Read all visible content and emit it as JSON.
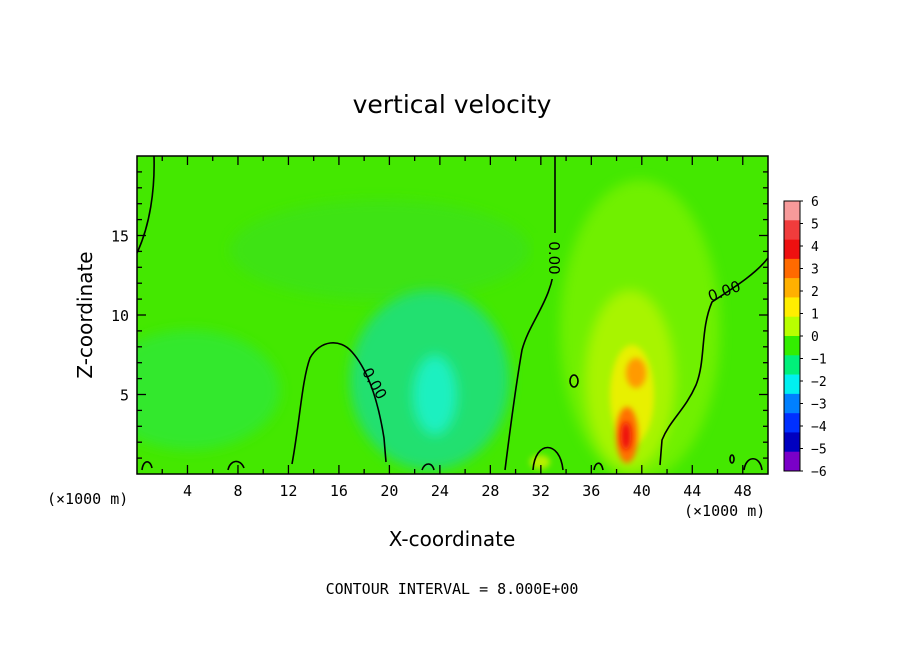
{
  "chart_data": {
    "type": "heatmap",
    "title": "vertical velocity",
    "xlabel": "X-coordinate",
    "ylabel": "Z-coordinate",
    "x_unit": "(×1000 m)",
    "y_unit": "(×1000 m)",
    "footer": "CONTOUR INTERVAL = 8.000E+00",
    "xlim": [
      0,
      50
    ],
    "ylim": [
      0,
      20
    ],
    "x_ticks": [
      4,
      8,
      12,
      16,
      20,
      24,
      28,
      32,
      36,
      40,
      44,
      48
    ],
    "y_ticks": [
      5,
      10,
      15
    ],
    "contour_label": "0.00",
    "colorbar": {
      "levels": [
        -6,
        -5,
        -4,
        -3,
        -2,
        -1,
        0,
        1,
        2,
        3,
        4,
        5,
        6
      ],
      "labels": [
        "6",
        "5",
        "4",
        "3",
        "2",
        "1",
        "0",
        "−1",
        "−2",
        "−3",
        "−4",
        "−5",
        "−6"
      ],
      "colors": [
        "#f79a9a",
        "#f03c3c",
        "#ee1010",
        "#ff6a00",
        "#ffb000",
        "#ffee00",
        "#b8ff00",
        "#33ee00",
        "#00f07a",
        "#00f0f0",
        "#0080ff",
        "#0030ff",
        "#0000c0",
        "#7a00c8"
      ]
    }
  }
}
